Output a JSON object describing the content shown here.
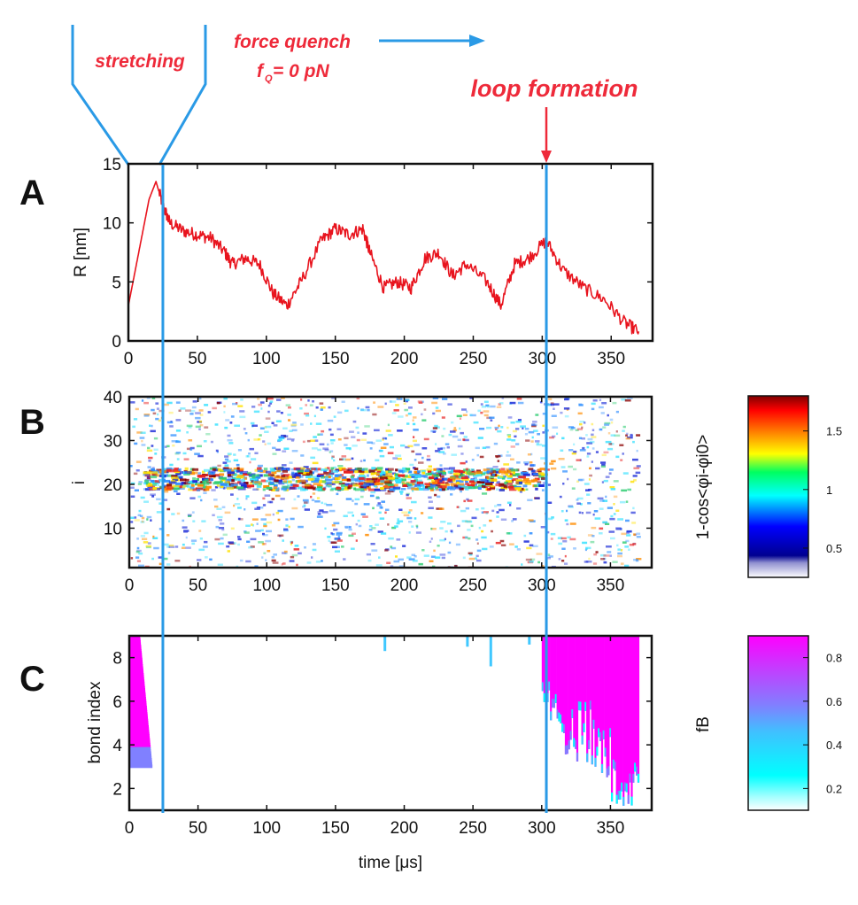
{
  "annotations": {
    "stretching": "stretching",
    "force_quench": "force quench",
    "f0_sym": "f",
    "f0_sub": "Q",
    "f0_rest": "= 0 pN",
    "loop_formation": "loop formation"
  },
  "colors": {
    "annotation": "#ee2a3a",
    "marker": "#2a9ae6",
    "trace": "#e8141e",
    "frame": "#111111"
  },
  "markers": {
    "x_values": [
      25,
      303
    ]
  },
  "chart_data": [
    {
      "id": "A",
      "panel_label": "A",
      "type": "line",
      "title": "",
      "xlabel": "",
      "ylabel": "R [nm]",
      "xlim": [
        0,
        380
      ],
      "ylim": [
        0,
        15
      ],
      "xticks": [
        0,
        50,
        100,
        150,
        200,
        250,
        300,
        350
      ],
      "yticks": [
        0,
        5,
        10,
        15
      ],
      "series": [
        {
          "name": "R",
          "x": [
            0,
            5,
            10,
            15,
            20,
            25,
            30,
            40,
            50,
            60,
            70,
            75,
            85,
            95,
            105,
            115,
            125,
            140,
            150,
            160,
            170,
            175,
            185,
            195,
            205,
            215,
            225,
            235,
            245,
            260,
            270,
            280,
            290,
            303,
            315,
            330,
            345,
            360,
            370
          ],
          "y": [
            3,
            6,
            9,
            12,
            13.5,
            11.5,
            10,
            9.3,
            9,
            8.7,
            7.5,
            6.5,
            7,
            6.5,
            4,
            3,
            5,
            8.5,
            9.5,
            9,
            9.5,
            7.5,
            4.5,
            5,
            4.5,
            7,
            7.5,
            5.5,
            6.5,
            5,
            3,
            6.5,
            7,
            8.5,
            6,
            4.5,
            3.5,
            1.5,
            0.8
          ]
        }
      ]
    },
    {
      "id": "B",
      "panel_label": "B",
      "type": "heatmap",
      "xlabel": "",
      "ylabel": "i",
      "xlim": [
        0,
        380
      ],
      "ylim": [
        1,
        40
      ],
      "xticks": [
        0,
        50,
        100,
        150,
        200,
        250,
        300,
        350
      ],
      "yticks": [
        10,
        20,
        30,
        40
      ],
      "colorbar": {
        "label": "1-cos<φi-φi0>",
        "ticks": [
          0.5,
          1,
          1.5
        ],
        "tick_labels": [
          "0.5",
          "1",
          "1.5"
        ],
        "range": [
          0.25,
          1.8
        ],
        "colormap": [
          "#ffffff",
          "#000090",
          "#0000ff",
          "#00ffff",
          "#ffff00",
          "#ff8000",
          "#ff0000",
          "#800000"
        ]
      },
      "features": [
        {
          "description": "dense band",
          "i_range": [
            19,
            24
          ],
          "x_range": [
            10,
            300
          ]
        },
        {
          "description": "sparse diffuse activity",
          "i_range": [
            1,
            40
          ],
          "x_range": [
            0,
            370
          ]
        }
      ]
    },
    {
      "id": "C",
      "panel_label": "C",
      "type": "heatmap",
      "xlabel": "time [μs]",
      "ylabel": "bond index",
      "xlim": [
        0,
        380
      ],
      "ylim": [
        1,
        9
      ],
      "xticks": [
        0,
        50,
        100,
        150,
        200,
        250,
        300,
        350
      ],
      "yticks": [
        2,
        4,
        6,
        8
      ],
      "colorbar": {
        "label": "fB",
        "ticks": [
          0.2,
          0.4,
          0.6,
          0.8
        ],
        "tick_labels": [
          "0.2",
          "0.4",
          "0.6",
          "0.8"
        ],
        "range": [
          0.1,
          0.9
        ],
        "colormap": [
          "#ffffff",
          "#00ffff",
          "#8080ff",
          "#ff00ff"
        ]
      },
      "features": [
        {
          "description": "early bonds",
          "x_range": [
            0,
            12
          ],
          "bond_range": [
            3,
            9
          ]
        },
        {
          "description": "late bonds",
          "x_range": [
            300,
            370
          ],
          "bond_range": [
            1,
            9
          ]
        }
      ]
    }
  ],
  "tick_labels": {
    "x": [
      "0",
      "50",
      "100",
      "150",
      "200",
      "250",
      "300",
      "350"
    ],
    "A_y": [
      "0",
      "5",
      "10",
      "15"
    ],
    "B_y": [
      "10",
      "20",
      "30",
      "40"
    ],
    "C_y": [
      "2",
      "4",
      "6",
      "8"
    ]
  }
}
